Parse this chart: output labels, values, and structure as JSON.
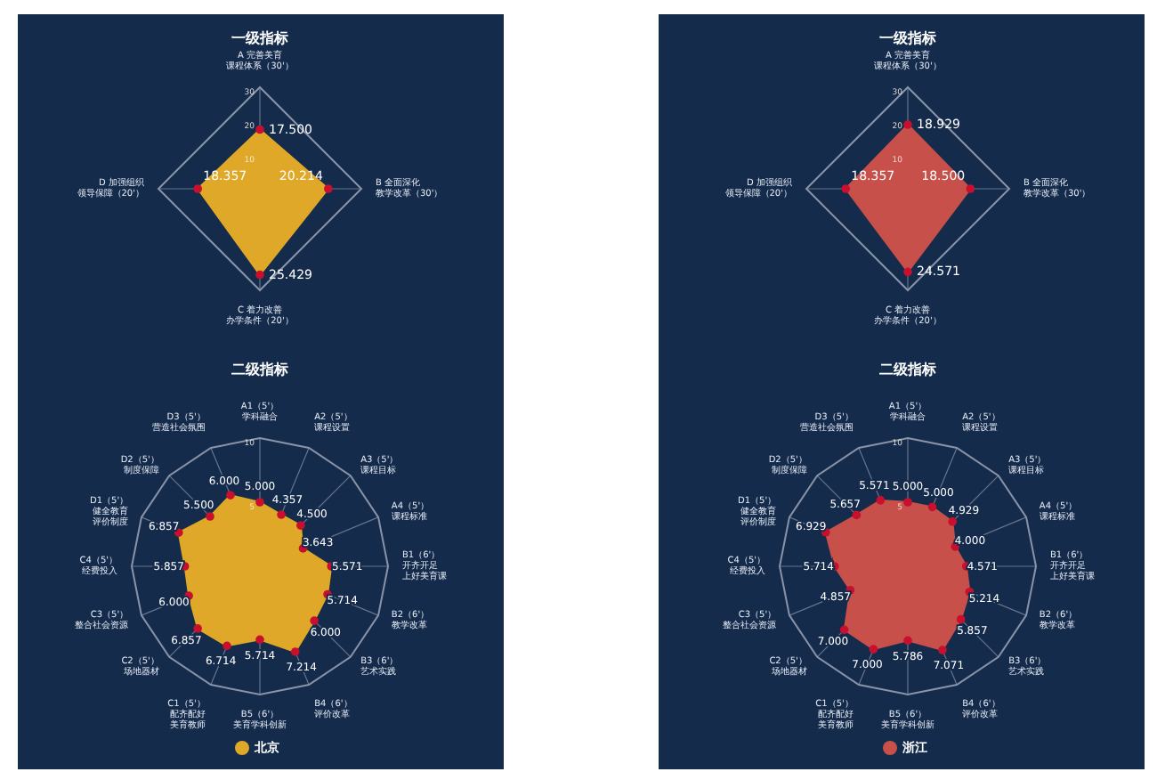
{
  "chart_data": [
    {
      "type": "radar",
      "title": "一级指标",
      "categories": [
        "A 完善美育课程体系（30'）",
        "B 全面深化教学改革（30'）",
        "C 着力改善办学条件（20'）",
        "D 加强组织领导保障（20'）"
      ],
      "ylim": [
        0,
        30
      ],
      "yticks": [
        10,
        20,
        30
      ],
      "series": [
        {
          "color": "#e0a828",
          "values": [
            17.5,
            20.214,
            25.429,
            18.357
          ],
          "value_labels": [
            "17.500",
            "20.214",
            "25.429",
            "18.357"
          ]
        }
      ]
    },
    {
      "type": "radar",
      "title": "二级指标",
      "legend": "bottom",
      "categories": [
        "A1（5'）学科融合",
        "A2（5'）课程设置",
        "A3（5'）课程目标",
        "A4（5'）课程标准",
        "B1（6'）开齐开足上好美育课",
        "B2（6'）教学改革",
        "B3（6'）艺术实践",
        "B4（6'）评价改革",
        "B5（6'）美育学科创新",
        "C1（5'）配齐配好美育教师",
        "C2（5'）场地器材",
        "C3（5'）整合社会资源",
        "C4（5'）经费投入",
        "D1（5'）健全教育评价制度",
        "D2（5'）制度保障",
        "D3（5'）营造社会氛围"
      ],
      "ylim": [
        0,
        10
      ],
      "yticks": [
        5,
        10
      ],
      "series": [
        {
          "name": "北京",
          "color": "#e0a828",
          "values": [
            5.0,
            4.357,
            4.5,
            3.643,
            5.571,
            5.714,
            6.0,
            7.214,
            5.714,
            6.714,
            6.857,
            6.0,
            5.857,
            6.857,
            5.5,
            6.0
          ],
          "value_labels": [
            "5.000",
            "4.357",
            "4.500",
            "3.643",
            "5.571",
            "5.714",
            "6.000",
            "7.214",
            "5.714",
            "6.714",
            "6.857",
            "6.000",
            "5.857",
            "6.857",
            "5.500",
            "6.000"
          ]
        }
      ]
    },
    {
      "type": "radar",
      "title": "一级指标",
      "categories": [
        "A 完善美育课程体系（30'）",
        "B 全面深化教学改革（30'）",
        "C 着力改善办学条件（20'）",
        "D 加强组织领导保障（20'）"
      ],
      "ylim": [
        0,
        30
      ],
      "yticks": [
        10,
        20,
        30
      ],
      "series": [
        {
          "color": "#c8504a",
          "values": [
            18.929,
            18.5,
            24.571,
            18.357
          ],
          "value_labels": [
            "18.929",
            "18.500",
            "24.571",
            "18.357"
          ]
        }
      ]
    },
    {
      "type": "radar",
      "title": "二级指标",
      "legend": "bottom",
      "categories": [
        "A1（5'）学科融合",
        "A2（5'）课程设置",
        "A3（5'）课程目标",
        "A4（5'）课程标准",
        "B1（6'）开齐开足上好美育课",
        "B2（6'）教学改革",
        "B3（6'）艺术实践",
        "B4（6'）评价改革",
        "B5（6'）美育学科创新",
        "C1（5'）配齐配好美育教师",
        "C2（5'）场地器材",
        "C3（5'）整合社会资源",
        "C4（5'）经费投入",
        "D1（5'）健全教育评价制度",
        "D2（5'）制度保障",
        "D3（5'）营造社会氛围"
      ],
      "ylim": [
        0,
        10
      ],
      "yticks": [
        5,
        10
      ],
      "series": [
        {
          "name": "浙江",
          "color": "#c8504a",
          "values": [
            5.0,
            5.0,
            4.929,
            4.0,
            4.571,
            5.214,
            5.857,
            7.071,
            5.786,
            7.0,
            7.0,
            4.857,
            5.714,
            6.929,
            5.657,
            5.571
          ],
          "value_labels": [
            "5.000",
            "5.000",
            "4.929",
            "4.000",
            "4.571",
            "5.214",
            "5.857",
            "7.071",
            "5.786",
            "7.000",
            "7.000",
            "4.857",
            "5.714",
            "6.929",
            "5.657",
            "5.571"
          ]
        }
      ]
    }
  ]
}
